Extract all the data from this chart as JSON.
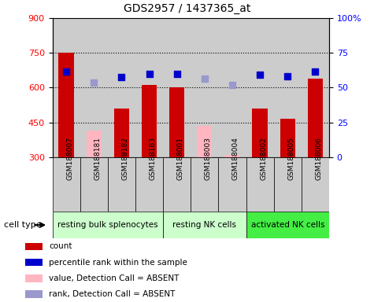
{
  "title": "GDS2957 / 1437365_at",
  "samples": [
    "GSM188007",
    "GSM188181",
    "GSM188182",
    "GSM188183",
    "GSM188001",
    "GSM188003",
    "GSM188004",
    "GSM188002",
    "GSM188005",
    "GSM188006"
  ],
  "cell_types": [
    {
      "label": "resting bulk splenocytes",
      "start": 0,
      "end": 4,
      "color": "#ccffcc"
    },
    {
      "label": "resting NK cells",
      "start": 4,
      "end": 7,
      "color": "#ccffcc"
    },
    {
      "label": "activated NK cells",
      "start": 7,
      "end": 10,
      "color": "#44ee44"
    }
  ],
  "bar_values": [
    750,
    null,
    510,
    610,
    600,
    null,
    null,
    510,
    465,
    640
  ],
  "bar_absent_values": [
    null,
    415,
    null,
    null,
    null,
    435,
    310,
    null,
    null,
    null
  ],
  "dot_values": [
    670,
    null,
    645,
    660,
    660,
    null,
    null,
    655,
    650,
    670
  ],
  "dot_absent_values": [
    null,
    620,
    null,
    null,
    null,
    640,
    610,
    null,
    null,
    null
  ],
  "bar_color": "#CC0000",
  "bar_absent_color": "#FFB6C1",
  "dot_color": "#0000CC",
  "dot_absent_color": "#9999CC",
  "ylim_left": [
    300,
    900
  ],
  "ylim_right": [
    0,
    100
  ],
  "yticks_left": [
    300,
    450,
    600,
    750,
    900
  ],
  "yticks_right": [
    0,
    25,
    50,
    75,
    100
  ],
  "hlines": [
    450,
    600,
    750
  ],
  "sample_bg_color": "#cccccc",
  "plot_bg": "#ffffff",
  "legend_items": [
    {
      "label": "count",
      "color": "#CC0000"
    },
    {
      "label": "percentile rank within the sample",
      "color": "#0000CC"
    },
    {
      "label": "value, Detection Call = ABSENT",
      "color": "#FFB6C1"
    },
    {
      "label": "rank, Detection Call = ABSENT",
      "color": "#9999CC"
    }
  ]
}
